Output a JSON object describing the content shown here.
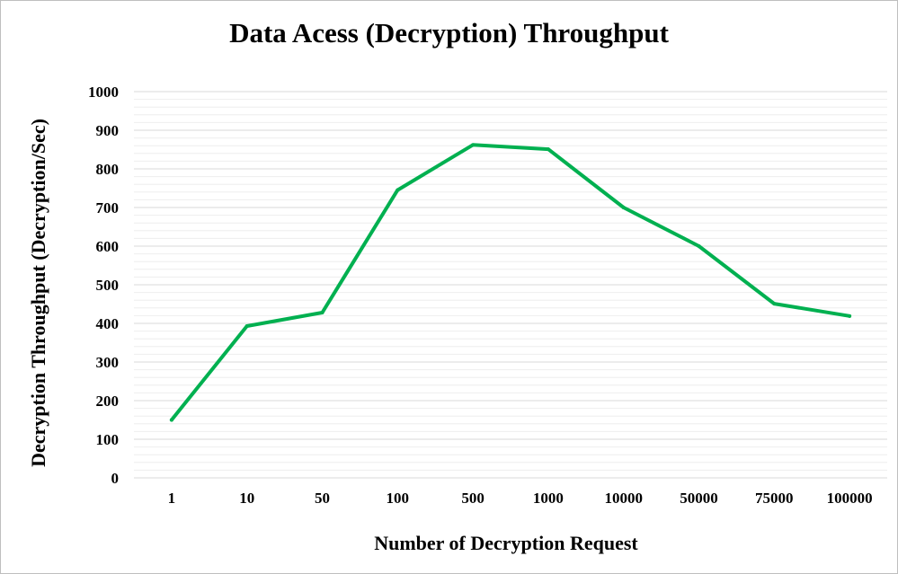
{
  "chart_data": {
    "type": "line",
    "title": "Data Acess (Decryption) Throughput",
    "xlabel": "Number of Decryption Request",
    "ylabel": "Decryption Throughput (Decryption/Sec)",
    "categories": [
      "1",
      "10",
      "50",
      "100",
      "500",
      "1000",
      "10000",
      "50000",
      "75000",
      "100000"
    ],
    "series": [
      {
        "values": [
          150,
          393,
          428,
          745,
          862,
          851,
          700,
          600,
          451,
          419
        ],
        "color": "#00b050"
      }
    ],
    "ylim": [
      0,
      1000
    ],
    "yticks": [
      0,
      100,
      200,
      300,
      400,
      500,
      600,
      700,
      800,
      900,
      1000
    ],
    "ytick_labels": [
      "0",
      "100",
      "200",
      "300",
      "400",
      "500",
      "600",
      "700",
      "800",
      "900",
      "1000"
    ],
    "grid": {
      "major": true,
      "minor": true
    },
    "colors": {
      "line": "#00b050",
      "major_grid": "#d9d9d9",
      "minor_grid": "#eeeeee"
    }
  }
}
